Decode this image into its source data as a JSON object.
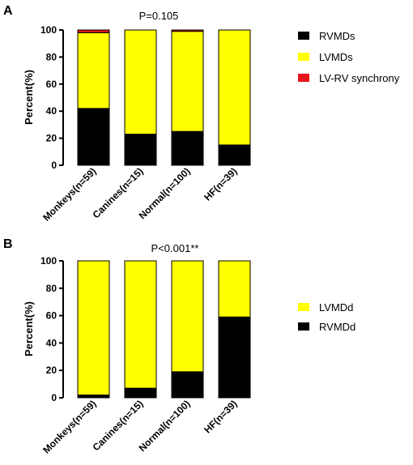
{
  "chart_data": [
    {
      "type": "bar",
      "stacked": true,
      "panel_label": "A",
      "annotation": "P=0.105",
      "ylabel": "Percent(%)",
      "ylim": [
        0,
        100
      ],
      "yticks": [
        "0",
        "20",
        "40",
        "60",
        "80",
        "100"
      ],
      "categories": [
        "Monkeys(n=59)",
        "Canines(n=15)",
        "Normal(n=100)",
        "HF(n=39)"
      ],
      "series": [
        {
          "name": "RVMDs",
          "color": "#000000",
          "values": [
            42,
            23,
            25,
            15
          ]
        },
        {
          "name": "LVMDs",
          "color": "#ffff00",
          "values": [
            56,
            77,
            74,
            85
          ]
        },
        {
          "name": "LV-RV synchrony",
          "color": "#e8141c",
          "values": [
            2,
            0,
            1,
            0
          ]
        }
      ],
      "legend_order": [
        "RVMDs",
        "LVMDs",
        "LV-RV synchrony"
      ],
      "legend_position": "right"
    },
    {
      "type": "bar",
      "stacked": true,
      "panel_label": "B",
      "annotation": "P<0.001**",
      "ylabel": "Percent(%)",
      "ylim": [
        0,
        100
      ],
      "yticks": [
        "0",
        "20",
        "40",
        "60",
        "80",
        "100"
      ],
      "categories": [
        "Monkeys(n=59)",
        "Canines(n=15)",
        "Normal(n=100)",
        "HF(n=39)"
      ],
      "series": [
        {
          "name": "RVMDd",
          "color": "#000000",
          "values": [
            2,
            7,
            19,
            59
          ]
        },
        {
          "name": "LVMDd",
          "color": "#ffff00",
          "values": [
            98,
            93,
            81,
            41
          ]
        }
      ],
      "legend_order": [
        "LVMDd",
        "RVMDd"
      ],
      "legend_position": "right"
    }
  ]
}
